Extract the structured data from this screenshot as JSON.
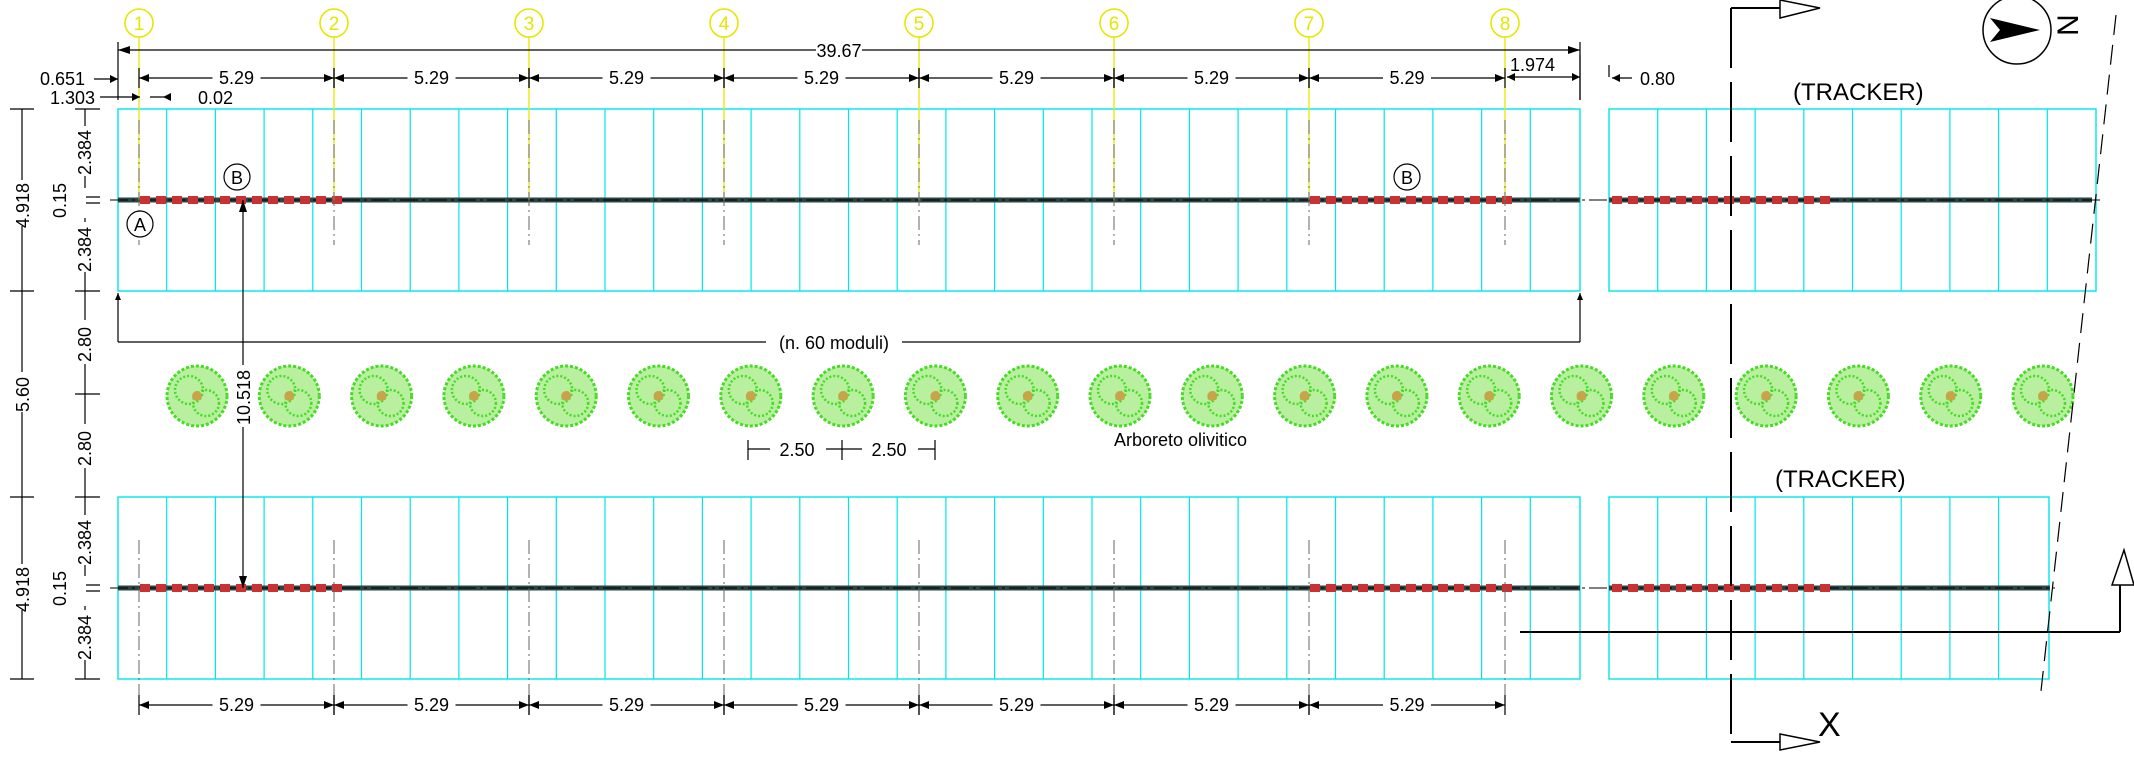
{
  "axes": {
    "labels": [
      "1",
      "2",
      "3",
      "4",
      "5",
      "6",
      "7",
      "8"
    ],
    "label_color": "#e6e600"
  },
  "dimensions": {
    "total_length": "39.67",
    "bay": "5.29",
    "left_offset_a": "0.651",
    "left_offset_b": "1.303",
    "small_gap": "0.02",
    "right_end": "1.974",
    "right_gap": "0.80",
    "module_count": "(n. 60 moduli)",
    "tree_spacing": "2.50"
  },
  "vertical_dims": {
    "half_panel": "2.384",
    "shaft": "0.15",
    "row_width": "4.918",
    "aisle_half": "2.80",
    "aisle": "5.60",
    "row_pitch": "10.518"
  },
  "labels": {
    "tracker": "(TRACKER)",
    "olive_grove": "Arboreto olivitico",
    "marker_a": "A",
    "marker_b": "B",
    "section_mark": "X",
    "north": "N"
  },
  "colors": {
    "panel": "#00e5e5",
    "shaft": "#2b4545",
    "post": "#c83232",
    "tree": "#44dd22",
    "axis_label": "#e6e600"
  }
}
